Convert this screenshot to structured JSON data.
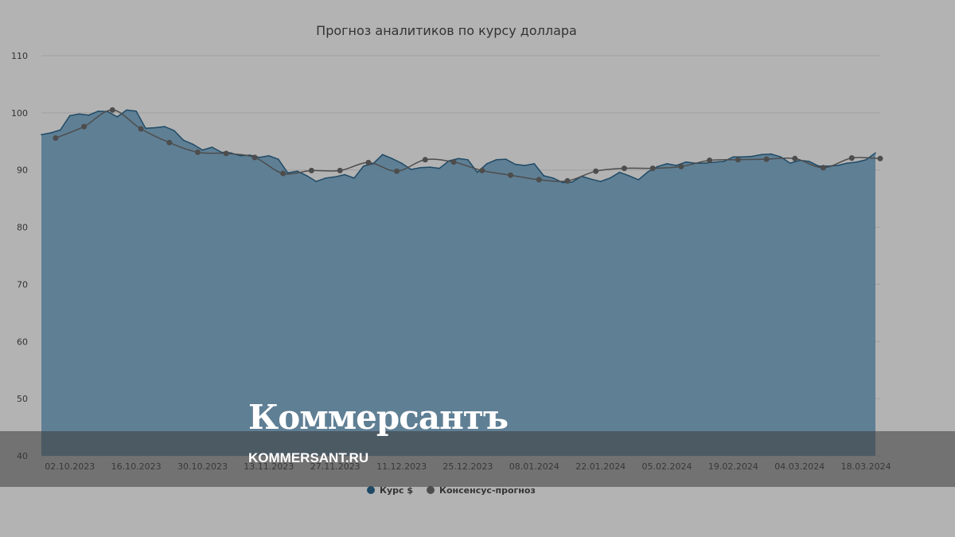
{
  "chart_data": {
    "type": "area",
    "title": "Прогноз аналитиков по курсу доллара",
    "ylim": [
      40,
      110
    ],
    "yticks": [
      40,
      50,
      60,
      70,
      80,
      90,
      100,
      110
    ],
    "xlim": [
      "2023-09-26",
      "2024-03-21"
    ],
    "xticks": [
      "02.10.2023",
      "16.10.2023",
      "30.10.2023",
      "13.11.2023",
      "27.11.2023",
      "11.12.2023",
      "25.12.2023",
      "08.01.2024",
      "22.01.2024",
      "05.02.2024",
      "19.02.2024",
      "04.03.2024",
      "18.03.2024"
    ],
    "grid": true,
    "legend_position": "bottom-center",
    "series": [
      {
        "name": "Курс $",
        "color": "#587b91",
        "x": [
          "2023-09-26",
          "2023-09-28",
          "2023-09-30",
          "2023-10-02",
          "2023-10-04",
          "2023-10-06",
          "2023-10-08",
          "2023-10-10",
          "2023-10-12",
          "2023-10-14",
          "2023-10-16",
          "2023-10-18",
          "2023-10-20",
          "2023-10-22",
          "2023-10-24",
          "2023-10-26",
          "2023-10-28",
          "2023-10-30",
          "2023-11-01",
          "2023-11-03",
          "2023-11-05",
          "2023-11-07",
          "2023-11-09",
          "2023-11-11",
          "2023-11-13",
          "2023-11-15",
          "2023-11-17",
          "2023-11-19",
          "2023-11-21",
          "2023-11-23",
          "2023-11-25",
          "2023-11-27",
          "2023-11-29",
          "2023-12-01",
          "2023-12-03",
          "2023-12-05",
          "2023-12-07",
          "2023-12-09",
          "2023-12-11",
          "2023-12-13",
          "2023-12-15",
          "2023-12-17",
          "2023-12-19",
          "2023-12-21",
          "2023-12-23",
          "2023-12-25",
          "2023-12-27",
          "2023-12-29",
          "2023-12-31",
          "2024-01-02",
          "2024-01-04",
          "2024-01-06",
          "2024-01-08",
          "2024-01-10",
          "2024-01-12",
          "2024-01-14",
          "2024-01-16",
          "2024-01-18",
          "2024-01-20",
          "2024-01-22",
          "2024-01-24",
          "2024-01-26",
          "2024-01-28",
          "2024-01-30",
          "2024-02-01",
          "2024-02-03",
          "2024-02-05",
          "2024-02-07",
          "2024-02-09",
          "2024-02-11",
          "2024-02-13",
          "2024-02-15",
          "2024-02-17",
          "2024-02-19",
          "2024-02-21",
          "2024-02-23",
          "2024-02-25",
          "2024-02-27",
          "2024-02-29",
          "2024-03-02",
          "2024-03-04",
          "2024-03-06",
          "2024-03-08",
          "2024-03-10",
          "2024-03-12",
          "2024-03-14",
          "2024-03-16",
          "2024-03-18",
          "2024-03-20"
        ],
        "values": [
          96.2,
          96.5,
          97.0,
          99.5,
          99.8,
          99.6,
          100.3,
          100.2,
          99.3,
          100.5,
          100.3,
          97.3,
          97.4,
          97.6,
          96.9,
          95.2,
          94.5,
          93.5,
          94.0,
          93.1,
          93.0,
          92.5,
          92.6,
          92.2,
          92.5,
          91.9,
          89.5,
          89.8,
          89.0,
          88.0,
          88.6,
          88.8,
          89.2,
          88.6,
          90.7,
          91.1,
          92.7,
          92.0,
          91.2,
          90.1,
          90.4,
          90.5,
          90.3,
          91.6,
          92.0,
          91.8,
          89.6,
          91.1,
          91.8,
          91.9,
          91.0,
          90.8,
          91.1,
          89.0,
          88.6,
          87.8,
          87.9,
          88.9,
          88.4,
          88.0,
          88.6,
          89.6,
          89.0,
          88.3,
          89.7,
          90.6,
          91.1,
          90.8,
          91.4,
          91.2,
          91.2,
          91.4,
          91.5,
          92.3,
          92.3,
          92.4,
          92.7,
          92.8,
          92.3,
          91.2,
          91.7,
          91.5,
          90.7,
          90.7,
          90.8,
          91.2,
          91.4,
          91.8,
          93.0
        ]
      },
      {
        "name": "Консенсус-прогноз",
        "color": "#4d4d4d",
        "x": [
          "2023-09-29",
          "2023-10-05",
          "2023-10-11",
          "2023-10-17",
          "2023-10-23",
          "2023-10-29",
          "2023-11-04",
          "2023-11-10",
          "2023-11-16",
          "2023-11-22",
          "2023-11-28",
          "2023-12-04",
          "2023-12-10",
          "2023-12-16",
          "2023-12-22",
          "2023-12-28",
          "2024-01-03",
          "2024-01-09",
          "2024-01-15",
          "2024-01-21",
          "2024-01-27",
          "2024-02-02",
          "2024-02-08",
          "2024-02-14",
          "2024-02-20",
          "2024-02-26",
          "2024-03-03",
          "2024-03-09",
          "2024-03-15",
          "2024-03-21"
        ],
        "values": [
          95.6,
          97.6,
          100.5,
          97.2,
          94.8,
          93.1,
          92.9,
          92.2,
          89.4,
          89.9,
          89.9,
          91.3,
          89.8,
          91.8,
          91.4,
          89.9,
          89.1,
          88.3,
          88.1,
          89.8,
          90.3,
          90.3,
          90.6,
          91.7,
          91.8,
          91.9,
          92.0,
          90.4,
          92.1,
          92.0
        ]
      }
    ]
  },
  "watermark": {
    "brand": "Коммерсантъ",
    "site": "KOMMERSANT.RU"
  }
}
